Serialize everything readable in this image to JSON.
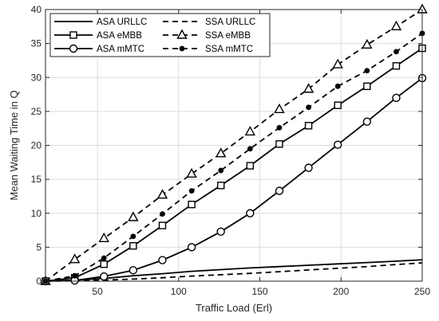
{
  "chart_data": {
    "type": "line",
    "xlabel": "Traffic Load (Erl)",
    "ylabel": "Mean Waiting Time in Q",
    "xlim": [
      18,
      250
    ],
    "ylim": [
      0,
      40
    ],
    "xticks": [
      "50",
      "100",
      "150",
      "200",
      "250"
    ],
    "yticks": [
      "0",
      "5",
      "10",
      "15",
      "20",
      "25",
      "30",
      "35",
      "40"
    ],
    "grid": true,
    "legend_position": "top-left",
    "series": [
      {
        "name": "ASA URLLC",
        "style": "solid",
        "marker": "none",
        "color": "#000000",
        "x": [
          18,
          36,
          54,
          72,
          90,
          108,
          126,
          144,
          162,
          180,
          198,
          216,
          234,
          250
        ],
        "y": [
          0,
          0.15,
          0.4,
          0.8,
          1.1,
          1.45,
          1.7,
          1.95,
          2.15,
          2.35,
          2.55,
          2.75,
          2.95,
          3.15
        ]
      },
      {
        "name": "SSA URLLC",
        "style": "dashed",
        "marker": "none",
        "color": "#000000",
        "x": [
          18,
          36,
          54,
          72,
          90,
          108,
          126,
          144,
          162,
          180,
          198,
          216,
          234,
          250
        ],
        "y": [
          0,
          0.05,
          0.15,
          0.3,
          0.5,
          0.75,
          0.95,
          1.15,
          1.4,
          1.65,
          1.9,
          2.15,
          2.45,
          2.7
        ]
      },
      {
        "name": "ASA eMBB",
        "style": "solid",
        "marker": "square",
        "color": "#000000",
        "x": [
          18,
          36,
          54,
          72,
          90,
          108,
          126,
          144,
          162,
          180,
          198,
          216,
          234,
          250
        ],
        "y": [
          0,
          0.5,
          2.5,
          5.2,
          8.2,
          11.3,
          14.1,
          17.0,
          20.2,
          22.9,
          25.9,
          28.7,
          31.7,
          34.3
        ]
      },
      {
        "name": "SSA eMBB",
        "style": "dashed",
        "marker": "triangle",
        "color": "#000000",
        "x": [
          18,
          36,
          54,
          72,
          90,
          108,
          126,
          144,
          162,
          180,
          198,
          216,
          234,
          250
        ],
        "y": [
          0,
          3.2,
          6.3,
          9.4,
          12.7,
          15.8,
          18.8,
          22.0,
          25.3,
          28.3,
          31.9,
          34.8,
          37.5,
          40.0
        ]
      },
      {
        "name": "ASA mMTC",
        "style": "solid",
        "marker": "circle",
        "color": "#000000",
        "x": [
          18,
          36,
          54,
          72,
          90,
          108,
          126,
          144,
          162,
          180,
          198,
          216,
          234,
          250
        ],
        "y": [
          0,
          0.1,
          0.7,
          1.6,
          3.1,
          5.0,
          7.3,
          10.0,
          13.3,
          16.7,
          20.1,
          23.5,
          27.0,
          29.9
        ]
      },
      {
        "name": "SSA mMTC",
        "style": "dashed",
        "marker": "dot",
        "color": "#000000",
        "x": [
          18,
          36,
          54,
          72,
          90,
          108,
          126,
          144,
          162,
          180,
          198,
          216,
          234,
          250
        ],
        "y": [
          0,
          0.8,
          3.4,
          6.6,
          9.9,
          13.3,
          16.3,
          19.5,
          22.6,
          25.6,
          28.7,
          31.0,
          33.8,
          36.5
        ]
      }
    ]
  }
}
